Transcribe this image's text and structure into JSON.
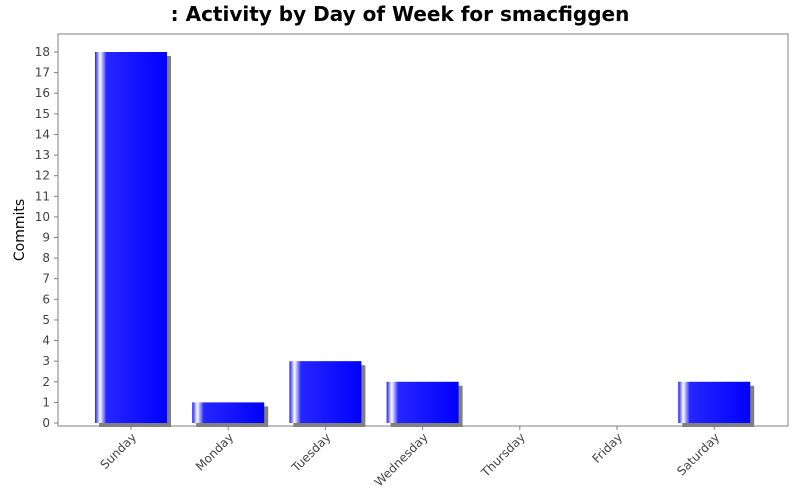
{
  "chart_data": {
    "type": "bar",
    "title": ": Activity by Day of Week for smacfiggen",
    "xlabel": "",
    "ylabel": "Commits",
    "categories": [
      "Sunday",
      "Monday",
      "Tuesday",
      "Wednesday",
      "Thursday",
      "Friday",
      "Saturday"
    ],
    "series": [
      {
        "values": [
          18,
          1,
          3,
          2,
          0,
          0,
          2
        ]
      }
    ],
    "ylim": [
      0,
      18
    ],
    "yticks": [
      0,
      1,
      2,
      3,
      4,
      5,
      6,
      7,
      8,
      9,
      10,
      11,
      12,
      13,
      14,
      15,
      16,
      17,
      18
    ],
    "grid": false,
    "legend": "none"
  },
  "colors": {
    "bar": "#0000ff",
    "bar_highlight": "#ffffff",
    "shadow": "#808080",
    "axis": "#808080",
    "text": "#444444",
    "title": "#000000",
    "plot_background": "#ffffff"
  }
}
